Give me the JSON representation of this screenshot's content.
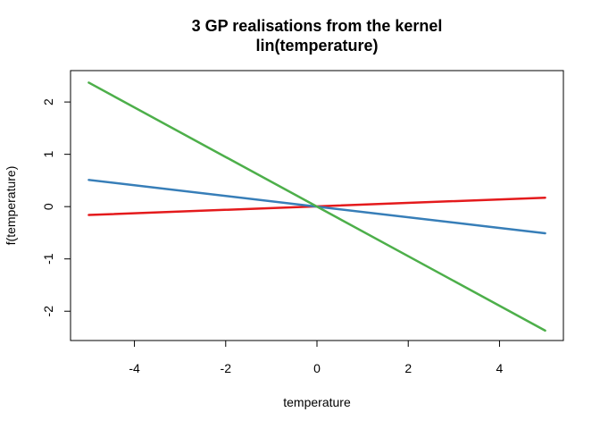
{
  "chart_data": {
    "type": "line",
    "title": [
      "3 GP realisations from the kernel",
      "lin(temperature)"
    ],
    "xlabel": "temperature",
    "ylabel": "f(temperature)",
    "xlim": [
      -5.4,
      5.4
    ],
    "ylim": [
      -2.56,
      2.6
    ],
    "x_ticks": [
      -4,
      -2,
      0,
      2,
      4
    ],
    "y_ticks": [
      -2,
      -1,
      0,
      1,
      2
    ],
    "x_tick_labels": [
      "-4",
      "-2",
      "0",
      "2",
      "4"
    ],
    "y_tick_labels": [
      "-2",
      "-1",
      "0",
      "1",
      "2"
    ],
    "grid": false,
    "legend": "none",
    "series": [
      {
        "color": "#E41A1C",
        "x": [
          -5,
          5
        ],
        "y": [
          -0.16,
          0.17
        ]
      },
      {
        "color": "#377EB8",
        "x": [
          -5,
          5
        ],
        "y": [
          0.51,
          -0.51
        ]
      },
      {
        "color": "#4DAF4A",
        "x": [
          -5,
          5
        ],
        "y": [
          2.37,
          -2.37
        ]
      }
    ]
  }
}
